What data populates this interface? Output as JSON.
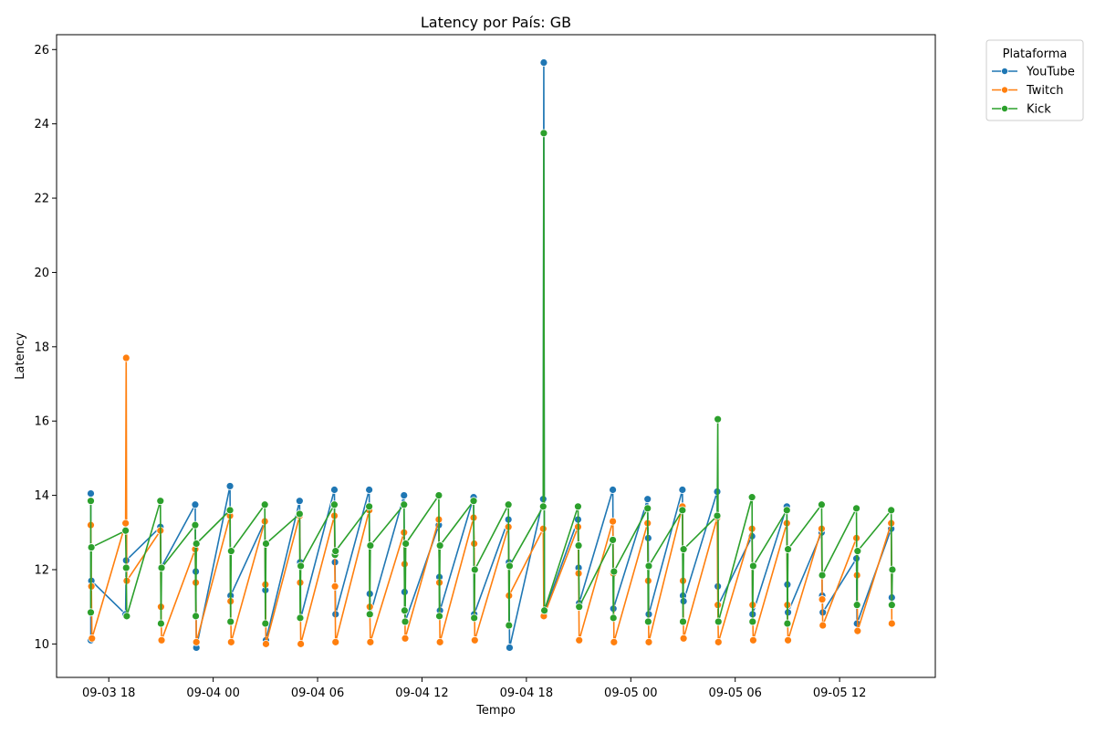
{
  "chart_data": {
    "type": "line",
    "title": "Latency por País: GB",
    "xlabel": "Tempo",
    "ylabel": "Latency",
    "ylim": [
      9.1,
      26.4
    ],
    "xlim": [
      "2025-09-03 15:00",
      "2025-09-05 17:30"
    ],
    "y_ticks": [
      10,
      12,
      14,
      16,
      18,
      20,
      22,
      24,
      26
    ],
    "x_ticks": [
      {
        "label": "09-03 18",
        "t": "2025-09-03 18:00"
      },
      {
        "label": "09-04 00",
        "t": "2025-09-04 00:00"
      },
      {
        "label": "09-04 06",
        "t": "2025-09-04 06:00"
      },
      {
        "label": "09-04 12",
        "t": "2025-09-04 12:00"
      },
      {
        "label": "09-04 18",
        "t": "2025-09-04 18:00"
      },
      {
        "label": "09-05 00",
        "t": "2025-09-05 00:00"
      },
      {
        "label": "09-05 06",
        "t": "2025-09-05 06:00"
      },
      {
        "label": "09-05 12",
        "t": "2025-09-05 12:00"
      }
    ],
    "grid": false,
    "legend": {
      "title": "Plataforma",
      "placement": "outside-top-right"
    },
    "series": [
      {
        "name": "YouTube",
        "color": "#1f77b4",
        "points": [
          [
            "2025-09-03 16:58",
            14.05
          ],
          [
            "2025-09-03 16:58",
            10.1
          ],
          [
            "2025-09-03 17:00",
            11.7
          ],
          [
            "2025-09-03 18:58",
            10.8
          ],
          [
            "2025-09-03 19:00",
            12.25
          ],
          [
            "2025-09-03 20:58",
            13.15
          ],
          [
            "2025-09-03 21:00",
            12.05
          ],
          [
            "2025-09-03 22:58",
            13.75
          ],
          [
            "2025-09-03 23:00",
            11.95
          ],
          [
            "2025-09-03 23:02",
            9.9
          ],
          [
            "2025-09-04 00:58",
            14.25
          ],
          [
            "2025-09-04 01:00",
            11.3
          ],
          [
            "2025-09-04 02:58",
            13.3
          ],
          [
            "2025-09-04 03:00",
            11.45
          ],
          [
            "2025-09-04 03:02",
            10.1
          ],
          [
            "2025-09-04 04:58",
            13.85
          ],
          [
            "2025-09-04 05:00",
            12.2
          ],
          [
            "2025-09-04 05:02",
            10.7
          ],
          [
            "2025-09-04 06:58",
            14.15
          ],
          [
            "2025-09-04 07:00",
            12.2
          ],
          [
            "2025-09-04 07:02",
            10.8
          ],
          [
            "2025-09-04 08:58",
            14.15
          ],
          [
            "2025-09-04 09:00",
            11.35
          ],
          [
            "2025-09-04 09:02",
            10.8
          ],
          [
            "2025-09-04 10:58",
            14.0
          ],
          [
            "2025-09-04 11:00",
            11.4
          ],
          [
            "2025-09-04 11:02",
            10.6
          ],
          [
            "2025-09-04 12:58",
            13.2
          ],
          [
            "2025-09-04 13:00",
            11.8
          ],
          [
            "2025-09-04 13:02",
            10.9
          ],
          [
            "2025-09-04 14:58",
            13.95
          ],
          [
            "2025-09-04 15:00",
            10.8
          ],
          [
            "2025-09-04 16:58",
            13.35
          ],
          [
            "2025-09-04 17:00",
            12.2
          ],
          [
            "2025-09-04 17:02",
            9.9
          ],
          [
            "2025-09-04 18:58",
            13.9
          ],
          [
            "2025-09-04 19:00",
            25.65
          ],
          [
            "2025-09-04 19:02",
            10.85
          ],
          [
            "2025-09-04 20:58",
            13.35
          ],
          [
            "2025-09-04 21:00",
            12.05
          ],
          [
            "2025-09-04 21:02",
            11.1
          ],
          [
            "2025-09-04 22:58",
            14.15
          ],
          [
            "2025-09-04 23:00",
            10.95
          ],
          [
            "2025-09-05 00:58",
            13.9
          ],
          [
            "2025-09-05 01:00",
            12.85
          ],
          [
            "2025-09-05 01:02",
            10.8
          ],
          [
            "2025-09-05 02:58",
            14.15
          ],
          [
            "2025-09-05 03:00",
            11.3
          ],
          [
            "2025-09-05 03:02",
            11.15
          ],
          [
            "2025-09-05 04:58",
            14.1
          ],
          [
            "2025-09-05 05:00",
            11.55
          ],
          [
            "2025-09-05 05:02",
            11.05
          ],
          [
            "2025-09-05 06:58",
            12.9
          ],
          [
            "2025-09-05 07:00",
            10.8
          ],
          [
            "2025-09-05 08:58",
            13.7
          ],
          [
            "2025-09-05 09:00",
            11.6
          ],
          [
            "2025-09-05 09:02",
            10.85
          ],
          [
            "2025-09-05 10:58",
            13.0
          ],
          [
            "2025-09-05 11:00",
            11.3
          ],
          [
            "2025-09-05 11:02",
            10.85
          ],
          [
            "2025-09-05 12:58",
            12.3
          ],
          [
            "2025-09-05 13:00",
            10.55
          ],
          [
            "2025-09-05 14:58",
            13.1
          ],
          [
            "2025-09-05 15:00",
            11.25
          ]
        ]
      },
      {
        "name": "Twitch",
        "color": "#ff7f0e",
        "points": [
          [
            "2025-09-03 16:58",
            13.2
          ],
          [
            "2025-09-03 17:00",
            11.55
          ],
          [
            "2025-09-03 17:02",
            10.15
          ],
          [
            "2025-09-03 18:58",
            13.25
          ],
          [
            "2025-09-03 19:00",
            17.7
          ],
          [
            "2025-09-03 19:02",
            11.7
          ],
          [
            "2025-09-03 20:58",
            13.05
          ],
          [
            "2025-09-03 21:00",
            11.0
          ],
          [
            "2025-09-03 21:02",
            10.1
          ],
          [
            "2025-09-03 22:58",
            12.55
          ],
          [
            "2025-09-03 23:00",
            11.65
          ],
          [
            "2025-09-03 23:02",
            10.05
          ],
          [
            "2025-09-04 00:58",
            13.45
          ],
          [
            "2025-09-04 01:00",
            11.15
          ],
          [
            "2025-09-04 01:02",
            10.05
          ],
          [
            "2025-09-04 02:58",
            13.3
          ],
          [
            "2025-09-04 03:00",
            11.6
          ],
          [
            "2025-09-04 03:02",
            10.0
          ],
          [
            "2025-09-04 04:58",
            13.45
          ],
          [
            "2025-09-04 05:00",
            11.65
          ],
          [
            "2025-09-04 05:02",
            10.0
          ],
          [
            "2025-09-04 06:58",
            13.45
          ],
          [
            "2025-09-04 07:00",
            11.55
          ],
          [
            "2025-09-04 07:02",
            10.05
          ],
          [
            "2025-09-04 08:58",
            13.6
          ],
          [
            "2025-09-04 09:00",
            11.0
          ],
          [
            "2025-09-04 09:02",
            10.05
          ],
          [
            "2025-09-04 10:58",
            13.0
          ],
          [
            "2025-09-04 11:00",
            12.15
          ],
          [
            "2025-09-04 11:02",
            10.15
          ],
          [
            "2025-09-04 12:58",
            13.35
          ],
          [
            "2025-09-04 13:00",
            11.65
          ],
          [
            "2025-09-04 13:02",
            10.05
          ],
          [
            "2025-09-04 14:58",
            13.4
          ],
          [
            "2025-09-04 15:00",
            12.7
          ],
          [
            "2025-09-04 15:02",
            10.1
          ],
          [
            "2025-09-04 16:58",
            13.15
          ],
          [
            "2025-09-04 17:00",
            11.3
          ],
          [
            "2025-09-04 18:58",
            13.1
          ],
          [
            "2025-09-04 19:00",
            10.75
          ],
          [
            "2025-09-04 20:58",
            13.15
          ],
          [
            "2025-09-04 21:00",
            11.9
          ],
          [
            "2025-09-04 21:02",
            10.1
          ],
          [
            "2025-09-04 22:58",
            13.3
          ],
          [
            "2025-09-04 23:00",
            11.9
          ],
          [
            "2025-09-04 23:02",
            10.05
          ],
          [
            "2025-09-05 00:58",
            13.25
          ],
          [
            "2025-09-05 01:00",
            11.7
          ],
          [
            "2025-09-05 01:02",
            10.05
          ],
          [
            "2025-09-05 02:58",
            13.7
          ],
          [
            "2025-09-05 03:00",
            11.7
          ],
          [
            "2025-09-05 03:02",
            10.15
          ],
          [
            "2025-09-05 04:58",
            13.4
          ],
          [
            "2025-09-05 05:00",
            11.05
          ],
          [
            "2025-09-05 05:02",
            10.05
          ],
          [
            "2025-09-05 06:58",
            13.1
          ],
          [
            "2025-09-05 07:00",
            11.05
          ],
          [
            "2025-09-05 07:02",
            10.1
          ],
          [
            "2025-09-05 08:58",
            13.25
          ],
          [
            "2025-09-05 09:00",
            11.05
          ],
          [
            "2025-09-05 09:02",
            10.1
          ],
          [
            "2025-09-05 10:58",
            13.1
          ],
          [
            "2025-09-05 11:00",
            11.2
          ],
          [
            "2025-09-05 11:02",
            10.5
          ],
          [
            "2025-09-05 12:58",
            12.85
          ],
          [
            "2025-09-05 13:00",
            11.85
          ],
          [
            "2025-09-05 13:02",
            10.35
          ],
          [
            "2025-09-05 14:58",
            13.25
          ],
          [
            "2025-09-05 15:00",
            10.55
          ]
        ]
      },
      {
        "name": "Kick",
        "color": "#2ca02c",
        "points": [
          [
            "2025-09-03 16:58",
            13.85
          ],
          [
            "2025-09-03 16:58",
            10.85
          ],
          [
            "2025-09-03 17:00",
            12.6
          ],
          [
            "2025-09-03 18:58",
            13.05
          ],
          [
            "2025-09-03 19:00",
            12.05
          ],
          [
            "2025-09-03 19:02",
            10.75
          ],
          [
            "2025-09-03 20:58",
            13.85
          ],
          [
            "2025-09-03 21:00",
            10.55
          ],
          [
            "2025-09-03 21:02",
            12.05
          ],
          [
            "2025-09-03 22:58",
            13.2
          ],
          [
            "2025-09-03 23:00",
            10.75
          ],
          [
            "2025-09-03 23:02",
            12.7
          ],
          [
            "2025-09-04 00:58",
            13.6
          ],
          [
            "2025-09-04 01:00",
            10.6
          ],
          [
            "2025-09-04 01:02",
            12.5
          ],
          [
            "2025-09-04 02:58",
            13.75
          ],
          [
            "2025-09-04 03:00",
            10.55
          ],
          [
            "2025-09-04 03:02",
            12.7
          ],
          [
            "2025-09-04 04:58",
            13.5
          ],
          [
            "2025-09-04 05:00",
            10.7
          ],
          [
            "2025-09-04 05:02",
            12.1
          ],
          [
            "2025-09-04 06:58",
            13.75
          ],
          [
            "2025-09-04 07:00",
            12.4
          ],
          [
            "2025-09-04 07:02",
            12.5
          ],
          [
            "2025-09-04 08:58",
            13.7
          ],
          [
            "2025-09-04 09:00",
            10.8
          ],
          [
            "2025-09-04 09:02",
            12.65
          ],
          [
            "2025-09-04 10:58",
            13.75
          ],
          [
            "2025-09-04 11:00",
            10.9
          ],
          [
            "2025-09-04 11:02",
            10.6
          ],
          [
            "2025-09-04 11:04",
            12.7
          ],
          [
            "2025-09-04 12:58",
            14.0
          ],
          [
            "2025-09-04 13:00",
            10.75
          ],
          [
            "2025-09-04 13:02",
            12.65
          ],
          [
            "2025-09-04 14:58",
            13.85
          ],
          [
            "2025-09-04 15:00",
            10.7
          ],
          [
            "2025-09-04 15:02",
            12.0
          ],
          [
            "2025-09-04 16:58",
            13.75
          ],
          [
            "2025-09-04 17:00",
            10.5
          ],
          [
            "2025-09-04 17:02",
            12.1
          ],
          [
            "2025-09-04 18:58",
            13.7
          ],
          [
            "2025-09-04 19:00",
            23.75
          ],
          [
            "2025-09-04 19:02",
            10.9
          ],
          [
            "2025-09-04 20:58",
            13.7
          ],
          [
            "2025-09-04 21:00",
            12.65
          ],
          [
            "2025-09-04 21:02",
            11.0
          ],
          [
            "2025-09-04 22:58",
            12.8
          ],
          [
            "2025-09-04 23:00",
            10.7
          ],
          [
            "2025-09-04 23:02",
            11.95
          ],
          [
            "2025-09-05 00:58",
            13.65
          ],
          [
            "2025-09-05 01:00",
            10.6
          ],
          [
            "2025-09-05 01:02",
            12.1
          ],
          [
            "2025-09-05 02:58",
            13.6
          ],
          [
            "2025-09-05 03:00",
            10.6
          ],
          [
            "2025-09-05 03:02",
            12.55
          ],
          [
            "2025-09-05 04:58",
            13.45
          ],
          [
            "2025-09-05 05:00",
            16.05
          ],
          [
            "2025-09-05 05:02",
            10.6
          ],
          [
            "2025-09-05 06:58",
            13.95
          ],
          [
            "2025-09-05 07:00",
            10.6
          ],
          [
            "2025-09-05 07:02",
            12.1
          ],
          [
            "2025-09-05 08:58",
            13.6
          ],
          [
            "2025-09-05 09:00",
            10.55
          ],
          [
            "2025-09-05 09:02",
            12.55
          ],
          [
            "2025-09-05 10:58",
            13.75
          ],
          [
            "2025-09-05 11:00",
            11.85
          ],
          [
            "2025-09-05 12:58",
            13.65
          ],
          [
            "2025-09-05 13:00",
            11.05
          ],
          [
            "2025-09-05 13:02",
            12.5
          ],
          [
            "2025-09-05 14:58",
            13.6
          ],
          [
            "2025-09-05 15:00",
            11.05
          ],
          [
            "2025-09-05 15:02",
            12.0
          ]
        ]
      }
    ]
  }
}
